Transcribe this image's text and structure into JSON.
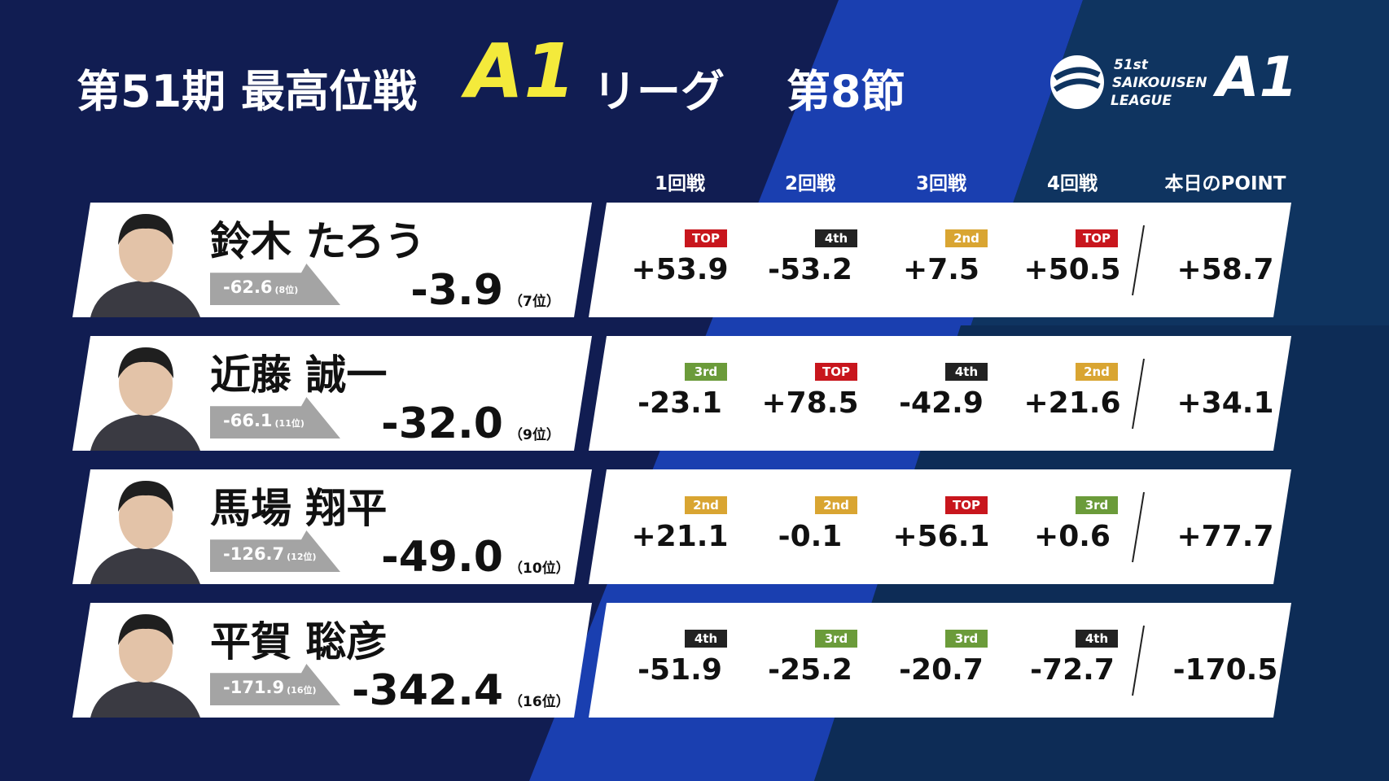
{
  "header": {
    "title_main": "第51期 最高位戦",
    "title_a1": "A1",
    "title_league": "リーグ",
    "title_round": "第8節",
    "logo": {
      "edition": "51st",
      "line1": "SAIKOUISEN",
      "line2": "LEAGUE",
      "mark": "A1"
    }
  },
  "badge_colors": {
    "TOP": "#c8161d",
    "2nd": "#d9a532",
    "3rd": "#6b9b3a",
    "4th": "#222222"
  },
  "table": {
    "columns": [
      "1回戦",
      "2回戦",
      "3回戦",
      "4回戦",
      "本日のPOINT"
    ],
    "rows": [
      {
        "name": "鈴木 たろう",
        "prev_score": "-62.6",
        "prev_rank": "(8位)",
        "total": "-3.9",
        "rank": "（7位）",
        "games": [
          {
            "badge": "TOP",
            "score": "+53.9"
          },
          {
            "badge": "4th",
            "score": "-53.2"
          },
          {
            "badge": "2nd",
            "score": "+7.5"
          },
          {
            "badge": "TOP",
            "score": "+50.5"
          }
        ],
        "day_point": "+58.7"
      },
      {
        "name": "近藤 誠一",
        "prev_score": "-66.1",
        "prev_rank": "(11位)",
        "total": "-32.0",
        "rank": "（9位）",
        "games": [
          {
            "badge": "3rd",
            "score": "-23.1"
          },
          {
            "badge": "TOP",
            "score": "+78.5"
          },
          {
            "badge": "4th",
            "score": "-42.9"
          },
          {
            "badge": "2nd",
            "score": "+21.6"
          }
        ],
        "day_point": "+34.1"
      },
      {
        "name": "馬場 翔平",
        "prev_score": "-126.7",
        "prev_rank": "(12位)",
        "total": "-49.0",
        "rank": "（10位）",
        "games": [
          {
            "badge": "2nd",
            "score": "+21.1"
          },
          {
            "badge": "2nd",
            "score": "-0.1"
          },
          {
            "badge": "TOP",
            "score": "+56.1"
          },
          {
            "badge": "3rd",
            "score": "+0.6"
          }
        ],
        "day_point": "+77.7"
      },
      {
        "name": "平賀 聡彦",
        "prev_score": "-171.9",
        "prev_rank": "(16位)",
        "total": "-342.4",
        "rank": "（16位）",
        "games": [
          {
            "badge": "4th",
            "score": "-51.9"
          },
          {
            "badge": "3rd",
            "score": "-25.2"
          },
          {
            "badge": "3rd",
            "score": "-20.7"
          },
          {
            "badge": "4th",
            "score": "-72.7"
          }
        ],
        "day_point": "-170.5"
      }
    ]
  }
}
